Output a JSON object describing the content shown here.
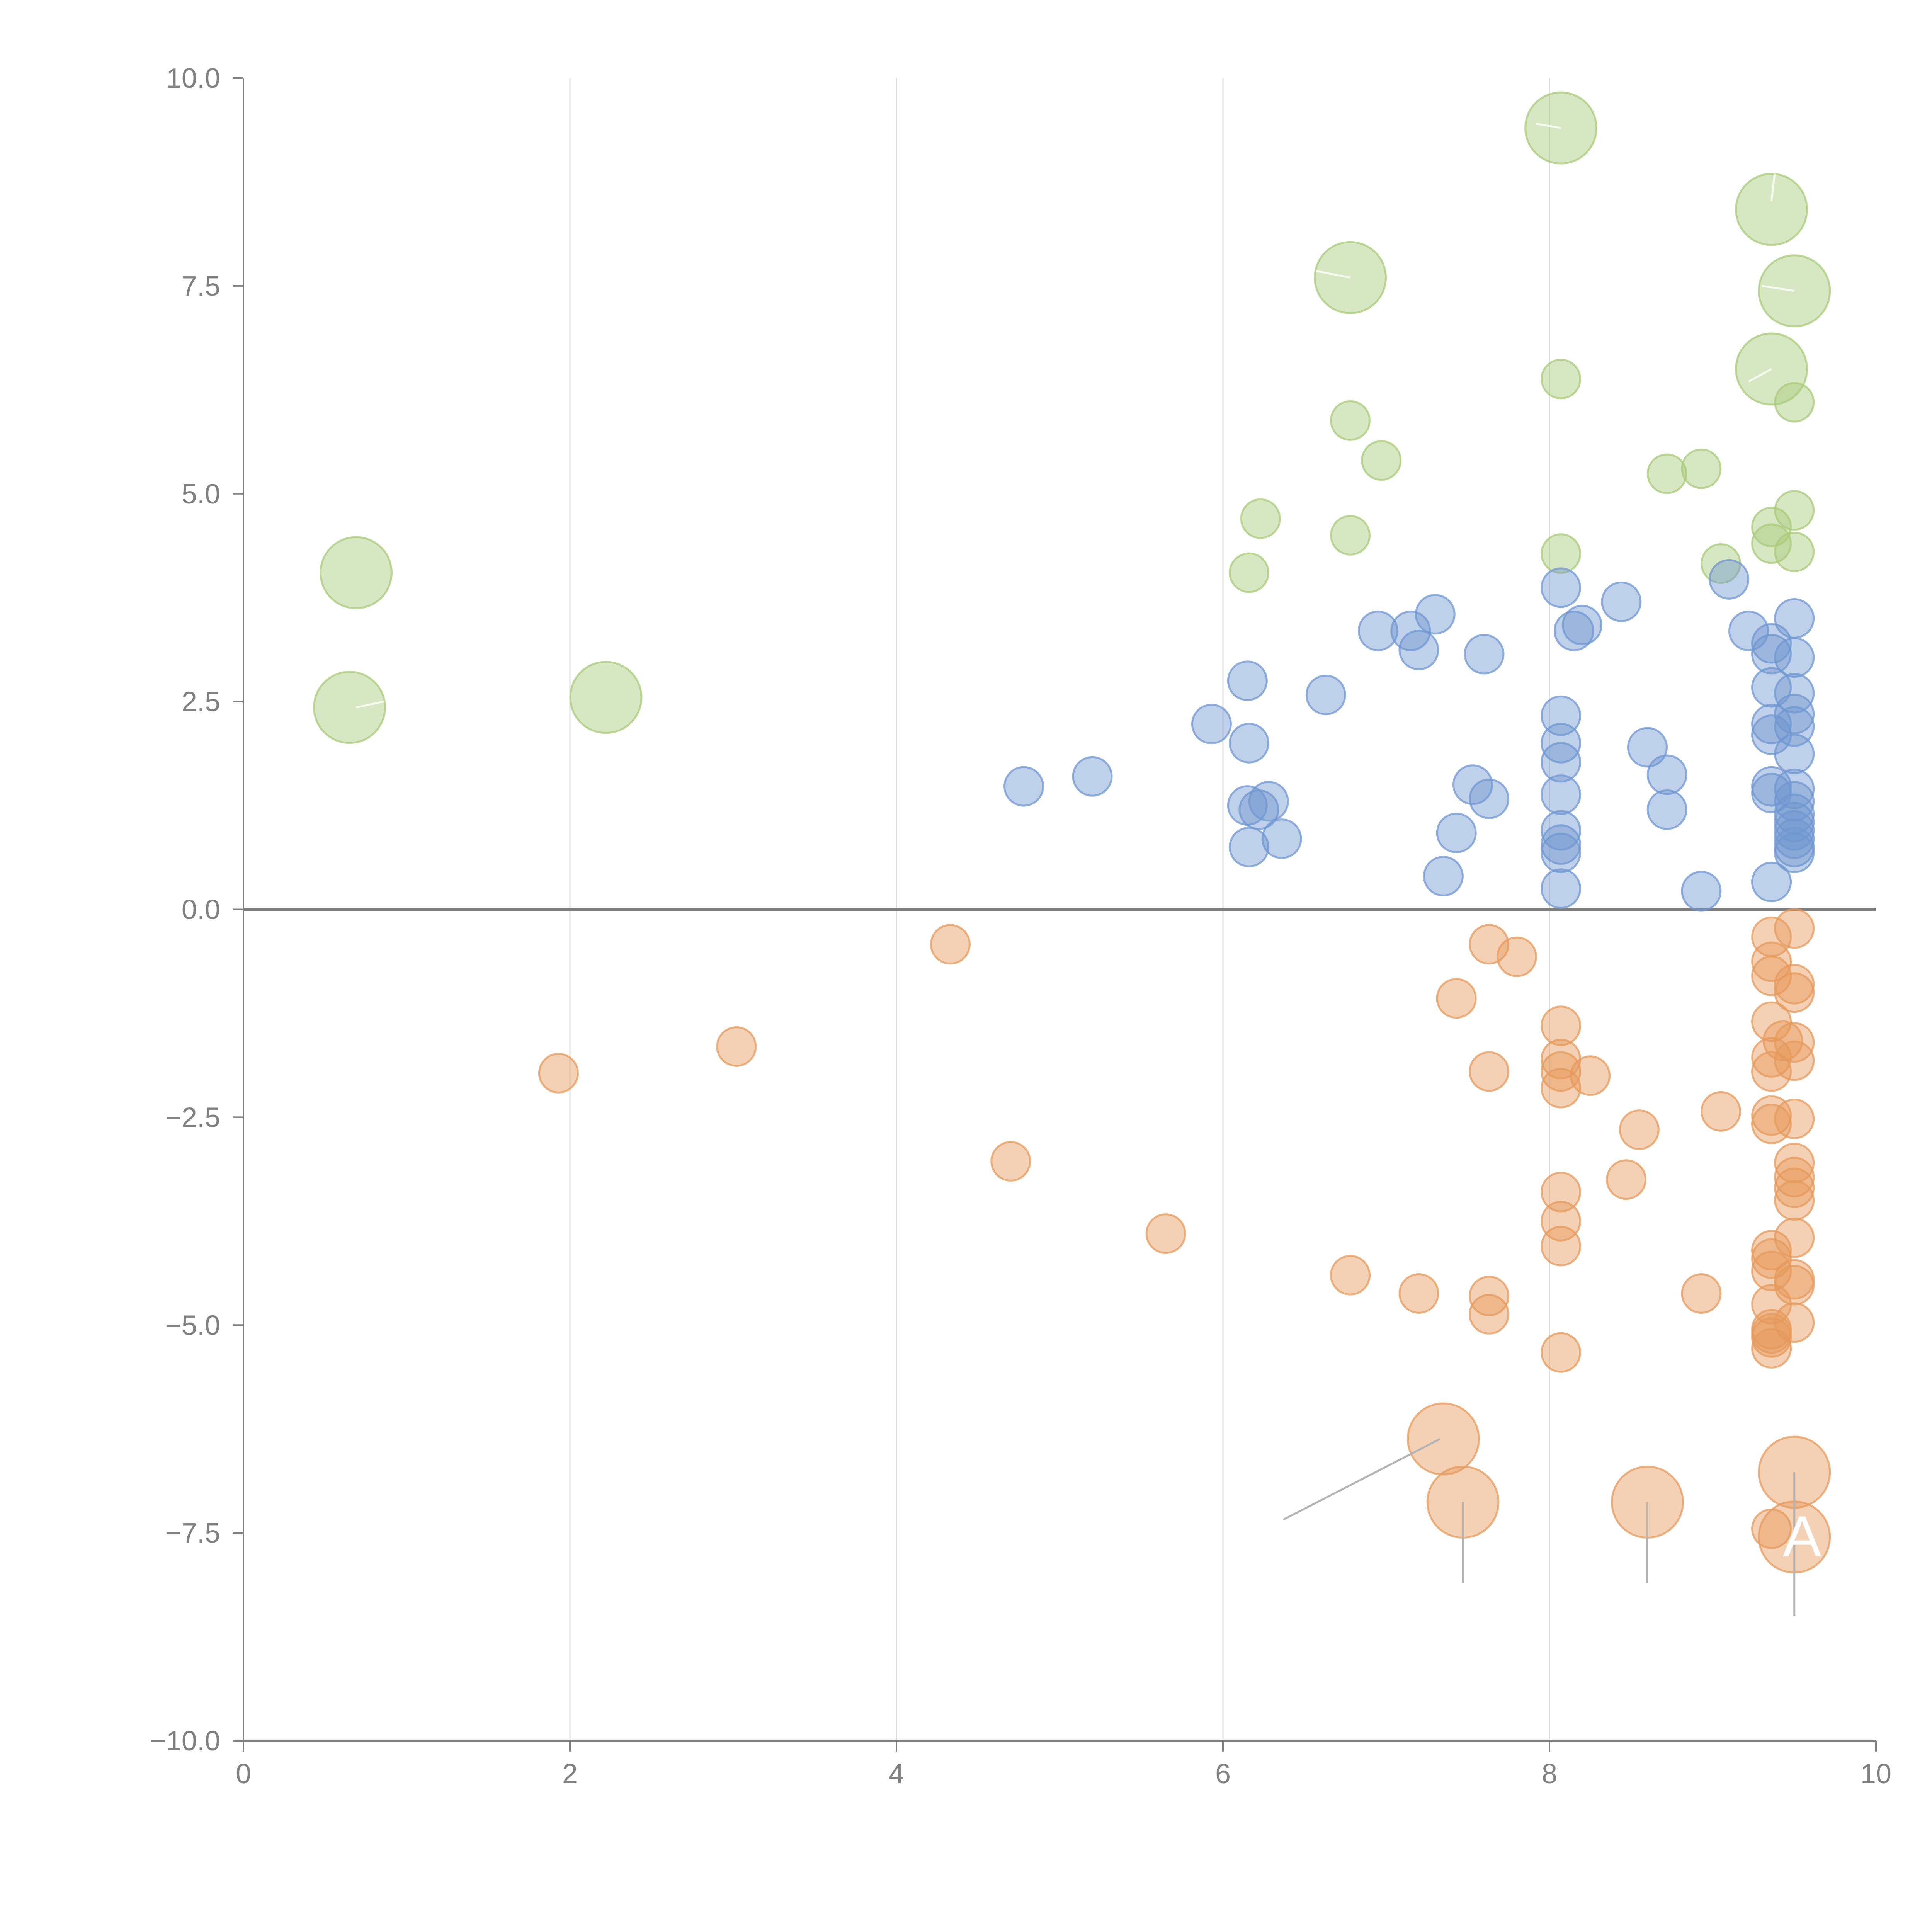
{
  "colors": {
    "green": "#a9c97a",
    "blue": "#7097d1",
    "orange": "#e69a5c",
    "axis": "#808080",
    "grid": "#dddddd",
    "zero_line": "#7f7f7f",
    "leader": "#b3b3b3",
    "label_text": "#ffffff"
  },
  "chart_data": {
    "type": "scatter",
    "title": "",
    "xlabel": "",
    "ylabel": "",
    "xlim": [
      0,
      10
    ],
    "ylim": [
      -10,
      10
    ],
    "x_ticks": [
      0,
      2,
      4,
      6,
      8,
      10
    ],
    "x_tick_labels": [
      "0",
      "2",
      "4",
      "6",
      "8",
      "10"
    ],
    "y_ticks": [
      10,
      7.5,
      5,
      2.5,
      0,
      -2.5,
      -5,
      -7.5,
      -10
    ],
    "y_tick_labels": [
      "10.0",
      "7.5",
      "5.0",
      "2.5",
      "0.0",
      "−2.5",
      "−5.0",
      "−7.5",
      "−10.0"
    ],
    "grid": "vertical",
    "reference_line_y": 0,
    "marker_opacity": 0.45,
    "series": [
      {
        "name": "green",
        "color": "#a9c97a",
        "points": [
          [
            8.07,
            9.4,
            3
          ],
          [
            9.36,
            8.42,
            3
          ],
          [
            6.78,
            7.6,
            3
          ],
          [
            9.5,
            7.44,
            3
          ],
          [
            9.36,
            6.5,
            3
          ],
          [
            8.07,
            6.38,
            1
          ],
          [
            9.5,
            6.1,
            1
          ],
          [
            6.78,
            5.88,
            1
          ],
          [
            6.97,
            5.4,
            1
          ],
          [
            8.72,
            5.24,
            1
          ],
          [
            8.93,
            5.3,
            1
          ],
          [
            9.5,
            4.8,
            1
          ],
          [
            6.23,
            4.7,
            1
          ],
          [
            9.36,
            4.6,
            1
          ],
          [
            6.78,
            4.5,
            1
          ],
          [
            9.36,
            4.4,
            1
          ],
          [
            9.5,
            4.3,
            1
          ],
          [
            8.07,
            4.28,
            1
          ],
          [
            9.05,
            4.16,
            1
          ],
          [
            6.16,
            4.05,
            1
          ],
          [
            0.69,
            4.05,
            3
          ],
          [
            0.65,
            2.43,
            3
          ],
          [
            2.22,
            2.55,
            3
          ]
        ]
      },
      {
        "name": "blue",
        "color": "#7097d1",
        "points": [
          [
            8.07,
            3.87,
            1
          ],
          [
            9.1,
            3.97,
            1
          ],
          [
            8.44,
            3.7,
            1
          ],
          [
            7.3,
            3.55,
            1
          ],
          [
            8.2,
            3.42,
            1
          ],
          [
            9.5,
            3.5,
            1
          ],
          [
            8.15,
            3.35,
            1
          ],
          [
            6.95,
            3.35,
            1
          ],
          [
            7.15,
            3.35,
            1
          ],
          [
            9.22,
            3.35,
            1
          ],
          [
            9.36,
            3.2,
            1
          ],
          [
            7.2,
            3.12,
            1
          ],
          [
            9.36,
            3.07,
            1
          ],
          [
            7.6,
            3.07,
            1
          ],
          [
            9.5,
            3.03,
            1
          ],
          [
            6.15,
            2.75,
            1
          ],
          [
            9.36,
            2.67,
            1
          ],
          [
            6.63,
            2.58,
            1
          ],
          [
            9.5,
            2.6,
            1
          ],
          [
            8.07,
            2.33,
            1
          ],
          [
            9.5,
            2.35,
            1
          ],
          [
            5.93,
            2.23,
            1
          ],
          [
            9.36,
            2.23,
            1
          ],
          [
            9.5,
            2.2,
            1
          ],
          [
            9.36,
            2.1,
            1
          ],
          [
            8.07,
            2.0,
            1
          ],
          [
            6.16,
            2.0,
            1
          ],
          [
            8.6,
            1.95,
            1
          ],
          [
            9.5,
            1.87,
            1
          ],
          [
            8.07,
            1.77,
            1
          ],
          [
            8.72,
            1.62,
            1
          ],
          [
            5.2,
            1.6,
            1
          ],
          [
            4.78,
            1.48,
            1
          ],
          [
            7.53,
            1.5,
            1
          ],
          [
            9.36,
            1.48,
            1
          ],
          [
            9.36,
            1.4,
            1
          ],
          [
            9.5,
            1.45,
            1
          ],
          [
            8.07,
            1.38,
            1
          ],
          [
            7.63,
            1.33,
            1
          ],
          [
            6.28,
            1.3,
            1
          ],
          [
            9.5,
            1.3,
            1
          ],
          [
            6.15,
            1.25,
            1
          ],
          [
            6.22,
            1.2,
            1
          ],
          [
            8.72,
            1.2,
            1
          ],
          [
            9.5,
            1.15,
            1
          ],
          [
            9.5,
            1.05,
            1
          ],
          [
            8.07,
            0.95,
            1
          ],
          [
            7.43,
            0.92,
            1
          ],
          [
            9.5,
            0.95,
            1
          ],
          [
            6.36,
            0.85,
            1
          ],
          [
            9.5,
            0.85,
            1
          ],
          [
            8.07,
            0.78,
            1
          ],
          [
            6.16,
            0.75,
            1
          ],
          [
            9.5,
            0.75,
            1
          ],
          [
            8.07,
            0.68,
            1
          ],
          [
            9.5,
            0.68,
            1
          ],
          [
            7.35,
            0.4,
            1
          ],
          [
            9.36,
            0.33,
            1
          ],
          [
            8.07,
            0.25,
            1
          ],
          [
            8.93,
            0.22,
            1
          ]
        ]
      },
      {
        "name": "orange",
        "color": "#e69a5c",
        "points": [
          [
            9.5,
            -0.23,
            1
          ],
          [
            9.36,
            -0.33,
            1
          ],
          [
            7.63,
            -0.42,
            1
          ],
          [
            4.33,
            -0.42,
            1
          ],
          [
            7.8,
            -0.57,
            1
          ],
          [
            9.36,
            -0.63,
            1
          ],
          [
            9.36,
            -0.8,
            1
          ],
          [
            9.5,
            -0.9,
            1
          ],
          [
            9.5,
            -1.0,
            1
          ],
          [
            7.43,
            -1.07,
            1
          ],
          [
            8.07,
            -1.4,
            1
          ],
          [
            9.36,
            -1.35,
            1
          ],
          [
            9.43,
            -1.58,
            1
          ],
          [
            9.5,
            -1.6,
            1
          ],
          [
            3.02,
            -1.65,
            1
          ],
          [
            9.36,
            -1.78,
            1
          ],
          [
            8.07,
            -1.8,
            1
          ],
          [
            9.5,
            -1.82,
            1
          ],
          [
            9.36,
            -1.95,
            1
          ],
          [
            8.07,
            -1.95,
            1
          ],
          [
            1.93,
            -1.97,
            1
          ],
          [
            7.63,
            -1.95,
            1
          ],
          [
            8.25,
            -2.0,
            1
          ],
          [
            8.07,
            -2.15,
            1
          ],
          [
            9.05,
            -2.43,
            1
          ],
          [
            9.36,
            -2.48,
            1
          ],
          [
            9.5,
            -2.52,
            1
          ],
          [
            9.36,
            -2.58,
            1
          ],
          [
            8.55,
            -2.65,
            1
          ],
          [
            4.7,
            -3.03,
            1
          ],
          [
            9.5,
            -3.05,
            1
          ],
          [
            9.5,
            -3.22,
            1
          ],
          [
            8.47,
            -3.25,
            1
          ],
          [
            9.5,
            -3.35,
            1
          ],
          [
            8.07,
            -3.4,
            1
          ],
          [
            9.5,
            -3.5,
            1
          ],
          [
            8.07,
            -3.75,
            1
          ],
          [
            5.65,
            -3.9,
            1
          ],
          [
            9.5,
            -3.95,
            1
          ],
          [
            8.07,
            -4.05,
            1
          ],
          [
            9.36,
            -4.1,
            1
          ],
          [
            9.36,
            -4.2,
            1
          ],
          [
            9.36,
            -4.35,
            1
          ],
          [
            6.78,
            -4.4,
            1
          ],
          [
            9.5,
            -4.45,
            1
          ],
          [
            9.5,
            -4.52,
            1
          ],
          [
            7.2,
            -4.62,
            1
          ],
          [
            8.93,
            -4.62,
            1
          ],
          [
            7.63,
            -4.65,
            1
          ],
          [
            9.36,
            -4.75,
            1
          ],
          [
            7.63,
            -4.87,
            1
          ],
          [
            9.5,
            -4.97,
            1
          ],
          [
            9.36,
            -5.05,
            1
          ],
          [
            9.36,
            -5.1,
            1
          ],
          [
            9.36,
            -5.15,
            1
          ],
          [
            9.36,
            -5.28,
            1
          ],
          [
            8.07,
            -5.33,
            1
          ],
          [
            7.35,
            -6.37,
            3
          ],
          [
            9.5,
            -6.77,
            3
          ],
          [
            7.47,
            -7.13,
            3
          ],
          [
            8.6,
            -7.13,
            3
          ],
          [
            9.36,
            -7.45,
            1
          ],
          [
            9.5,
            -7.55,
            3
          ]
        ]
      }
    ],
    "annotations": [
      {
        "text": "A",
        "anchor": [
          9.5,
          -7.55
        ]
      }
    ]
  }
}
